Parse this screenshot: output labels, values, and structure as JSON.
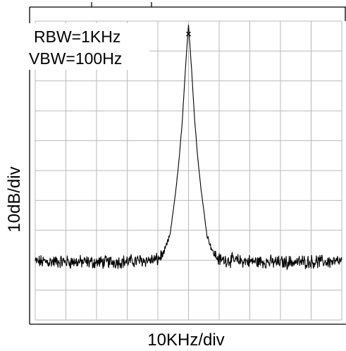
{
  "chart_data": {
    "type": "line",
    "title": "",
    "xlabel": "10KHz/div",
    "ylabel": "10dB/div",
    "annotations": [
      "RBW=1KHz",
      "VBW=100Hz"
    ],
    "grid": true,
    "x_divisions": 10,
    "y_divisions": 10,
    "xlim": [
      0,
      10
    ],
    "ylim": [
      -100,
      0
    ],
    "peak": {
      "x": 5.0,
      "y": -1.0,
      "marker": "x"
    },
    "noise_floor_db": -80.5,
    "series": [
      {
        "x": [
          0,
          1,
          2,
          3,
          4,
          4.2,
          4.4,
          4.6,
          4.7,
          4.8,
          4.9,
          5.0,
          5.1,
          5.2,
          5.3,
          5.4,
          5.6,
          5.8,
          6.0,
          7,
          8,
          9,
          10
        ],
        "values": [
          -80.5,
          -80.5,
          -80.7,
          -80.4,
          -79.8,
          -77.5,
          -71.5,
          -55.5,
          -45.5,
          -33,
          -16,
          -1,
          -16,
          -33,
          -45.5,
          -55.5,
          -71.5,
          -77.5,
          -79.8,
          -80.4,
          -80.7,
          -80.5,
          -80.5
        ]
      }
    ]
  }
}
